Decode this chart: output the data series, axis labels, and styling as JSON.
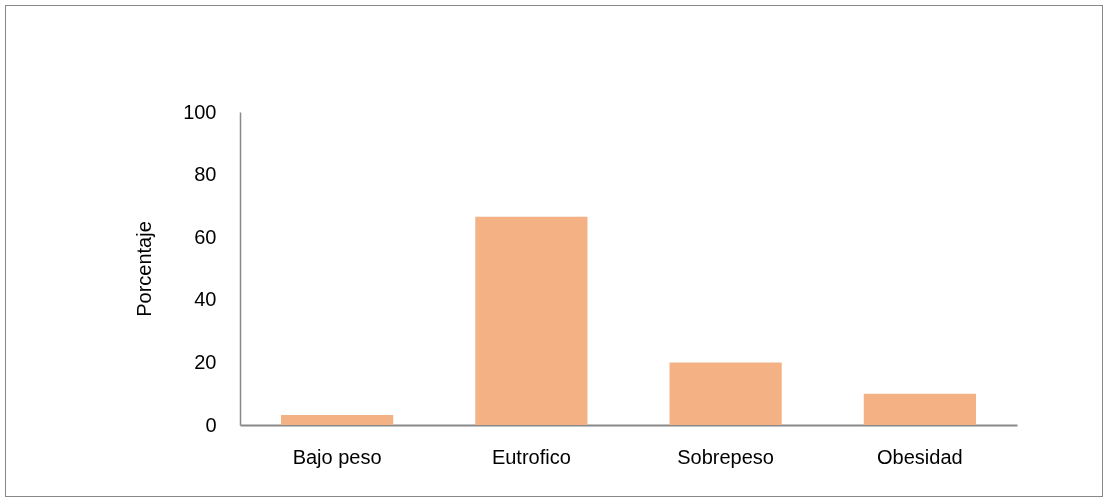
{
  "chart_data": {
    "type": "bar",
    "ylabel": "Porcentaje",
    "categories": [
      "Bajo peso",
      "Eutrofico",
      "Sobrepeso",
      "Obesidad"
    ],
    "series": [
      {
        "color": "#f4b183",
        "values": [
          3.2,
          66.5,
          20,
          10
        ]
      }
    ],
    "ylim": [
      0,
      100
    ],
    "yticks": [
      0,
      20,
      40,
      60,
      80,
      100
    ],
    "grid": false
  }
}
